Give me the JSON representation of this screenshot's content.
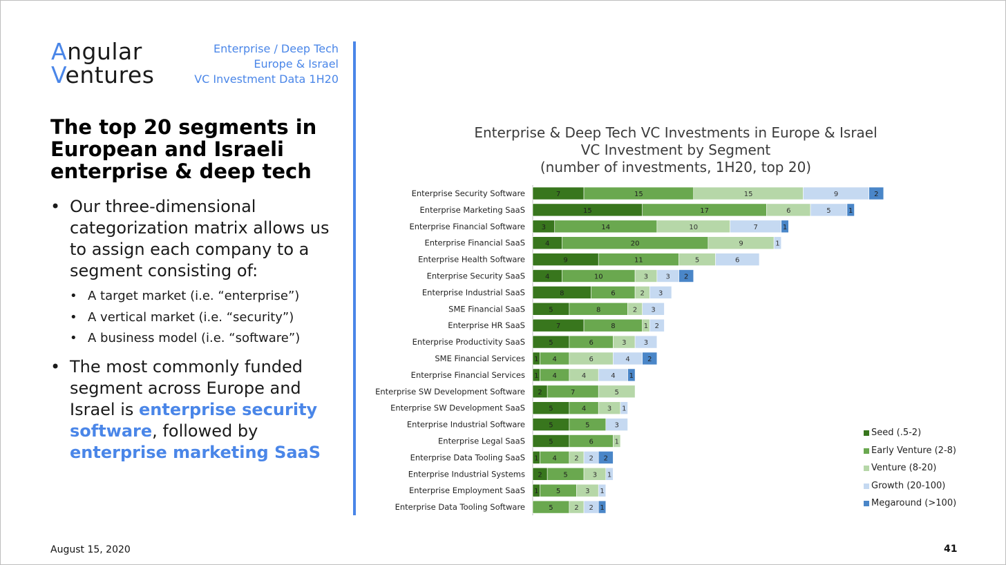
{
  "brand": {
    "logo_initial_1": "A",
    "logo_rest_1": "ngular",
    "logo_initial_2": "V",
    "logo_rest_2": "entures",
    "tagline": [
      "Enterprise / Deep Tech",
      "Europe & Israel",
      "VC Investment Data 1H20"
    ]
  },
  "headline": "The top 20 segments in European and Israeli enterprise & deep tech",
  "bullets": {
    "first": "Our three-dimensional categorization matrix allows us to assign each company to a segment consisting of:",
    "sub": [
      "A target market (i.e. “enterprise”)",
      "A vertical market (i.e. “security”)",
      "A business model (i.e. “software”)"
    ],
    "second_pre": "The most commonly funded segment across Europe and Israel is ",
    "second_hl1": "enterprise security software",
    "second_mid": ", followed by ",
    "second_hl2": "enterprise marketing SaaS"
  },
  "footer": {
    "date": "August 15, 2020",
    "page": "41"
  },
  "colors": {
    "accent": "#4a86e8",
    "seed": "#38761d",
    "early": "#6aa84f",
    "venture": "#b6d7a8",
    "growth": "#c5d9f1",
    "mega": "#4a86c8"
  },
  "chart_data": {
    "type": "bar",
    "orientation": "horizontal",
    "stacked": true,
    "title": [
      "Enterprise & Deep Tech VC Investments in Europe & Israel",
      "VC Investment by Segment",
      "(number of investments, 1H20, top 20)"
    ],
    "xlabel": "",
    "ylabel": "",
    "xlim": [
      0,
      48
    ],
    "grid": false,
    "legend_position": "right",
    "categories": [
      "Enterprise Security Software",
      "Enterprise Marketing SaaS",
      "Enterprise Financial Software",
      "Enterprise Financial SaaS",
      "Enterprise Health Software",
      "Enterprise Security SaaS",
      "Enterprise Industrial SaaS",
      "SME Financial SaaS",
      "Enterprise HR SaaS",
      "Enterprise Productivity SaaS",
      "SME Financial Services",
      "Enterprise Financial Services",
      "Enterprise SW Development Software",
      "Enterprise SW Development SaaS",
      "Enterprise Industrial Software",
      "Enterprise Legal SaaS",
      "Enterprise Data Tooling SaaS",
      "Enterprise Industrial Systems",
      "Enterprise Employment SaaS",
      "Enterprise Data Tooling Software"
    ],
    "series": [
      {
        "name": "Seed (.5-2)",
        "color": "#38761d",
        "values": [
          7,
          15,
          3,
          4,
          9,
          4,
          8,
          5,
          7,
          5,
          1,
          1,
          2,
          5,
          5,
          5,
          1,
          2,
          1,
          0
        ]
      },
      {
        "name": "Early Venture (2-8)",
        "color": "#6aa84f",
        "values": [
          15,
          17,
          14,
          20,
          11,
          10,
          6,
          8,
          8,
          6,
          4,
          4,
          7,
          4,
          5,
          6,
          4,
          5,
          5,
          5
        ]
      },
      {
        "name": "Venture (8-20)",
        "color": "#b6d7a8",
        "values": [
          15,
          6,
          10,
          9,
          5,
          3,
          2,
          2,
          1,
          3,
          6,
          4,
          5,
          3,
          0,
          1,
          2,
          3,
          3,
          2
        ]
      },
      {
        "name": "Growth (20-100)",
        "color": "#c5d9f1",
        "values": [
          9,
          5,
          7,
          1,
          6,
          3,
          3,
          3,
          2,
          3,
          4,
          4,
          0,
          1,
          3,
          0,
          2,
          1,
          1,
          2
        ]
      },
      {
        "name": "Megaround (>100)",
        "color": "#4a86c8",
        "values": [
          2,
          1,
          1,
          0,
          0,
          2,
          0,
          0,
          0,
          0,
          2,
          1,
          0,
          0,
          0,
          0,
          2,
          0,
          0,
          1
        ]
      }
    ]
  }
}
